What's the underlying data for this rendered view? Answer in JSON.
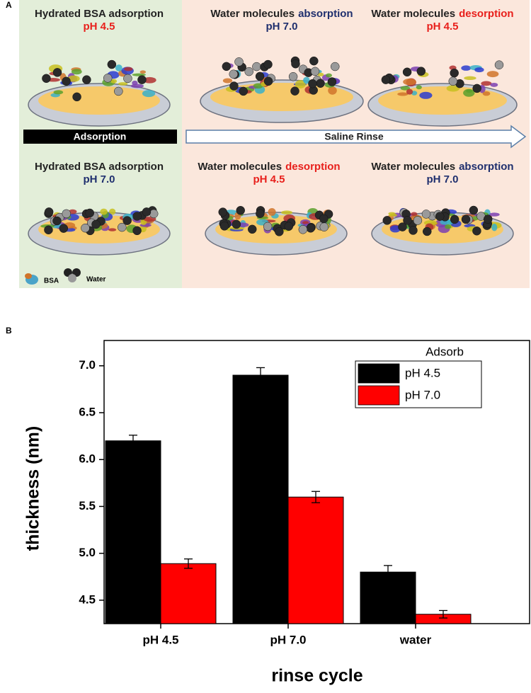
{
  "panel_labels": [
    "A",
    "B"
  ],
  "diagram": {
    "captions": [
      {
        "line1": [
          {
            "text": "Hydrated BSA adsorption",
            "color": "#222222"
          }
        ],
        "line2": [
          {
            "text": "pH 4.5",
            "color": "#e8201c"
          }
        ]
      },
      {
        "line1": [
          {
            "text": "Water molecules",
            "color": "#222222"
          },
          {
            "text": "absorption",
            "color": "#1f2f6e"
          }
        ],
        "line2": [
          {
            "text": "pH 7.0",
            "color": "#1f2f6e"
          }
        ]
      },
      {
        "line1": [
          {
            "text": "Water molecules",
            "color": "#222222"
          },
          {
            "text": "desorption",
            "color": "#e8201c"
          }
        ],
        "line2": [
          {
            "text": "pH 4.5",
            "color": "#e8201c"
          }
        ]
      },
      {
        "line1": [
          {
            "text": "Hydrated BSA adsorption",
            "color": "#222222"
          }
        ],
        "line2": [
          {
            "text": "pH 7.0",
            "color": "#1f2f6e"
          }
        ]
      },
      {
        "line1": [
          {
            "text": "Water molecules",
            "color": "#222222"
          },
          {
            "text": "desorption",
            "color": "#e8201c"
          }
        ],
        "line2": [
          {
            "text": "pH 4.5",
            "color": "#e8201c"
          }
        ]
      },
      {
        "line1": [
          {
            "text": "Water molecules",
            "color": "#222222"
          },
          {
            "text": "absorption",
            "color": "#1f2f6e"
          }
        ],
        "line2": [
          {
            "text": "pH 7.0",
            "color": "#1f2f6e"
          }
        ]
      }
    ],
    "arrows": {
      "adsorption": "Adsorption",
      "rinse": "Saline Rinse"
    },
    "legend": {
      "bsa": "BSA",
      "water": "Water"
    }
  },
  "chart_data": {
    "type": "bar",
    "x_label": "rinse cycle",
    "y_label": "thickness (nm)",
    "categories": [
      "pH 4.5",
      "pH 7.0",
      "water"
    ],
    "legend_title": "Adsorb",
    "legend_position": "upper right",
    "series": [
      {
        "name": "pH 4.5",
        "color": "#000000",
        "values": [
          6.2,
          6.9,
          4.8
        ],
        "errors": [
          0.06,
          0.08,
          0.07
        ]
      },
      {
        "name": "pH 7.0",
        "color": "#ff0000",
        "values": [
          4.89,
          5.6,
          4.35
        ],
        "errors": [
          0.05,
          0.06,
          0.04
        ]
      }
    ],
    "ylim": [
      4.25,
      7.27
    ],
    "yticks": [
      {
        "value": 4.5,
        "label": "4.5"
      },
      {
        "value": 5,
        "label": "5.0"
      },
      {
        "value": 5.5,
        "label": "5.5"
      },
      {
        "value": 6,
        "label": "6.0"
      },
      {
        "value": 6.5,
        "label": "6.5"
      },
      {
        "value": 7,
        "label": "7.0"
      }
    ]
  }
}
